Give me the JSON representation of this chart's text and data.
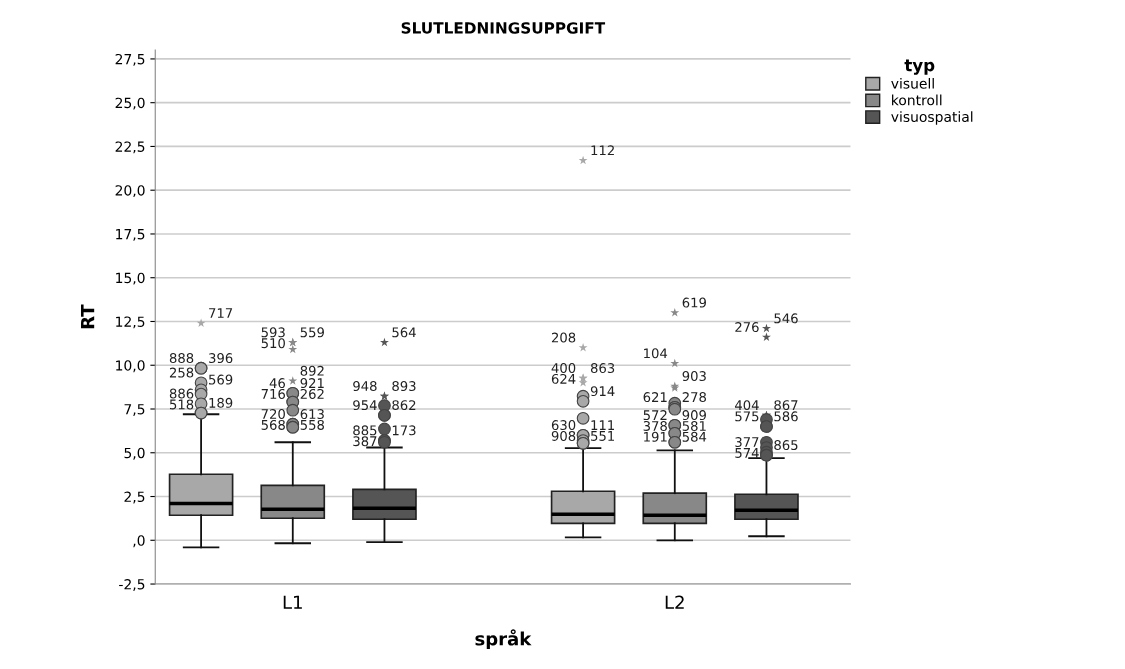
{
  "chart_data": {
    "type": "box",
    "title": "SLUTLEDNINGSUPPGIFT",
    "xlabel": "språk",
    "ylabel": "RT",
    "legend_title": "typ",
    "legend": "top right",
    "grid": "y",
    "categories": [
      "L1",
      "L2"
    ],
    "ylim": [
      -2.5,
      28
    ],
    "yticks": [
      {
        "value": -2.5,
        "label": "-2,5"
      },
      {
        "value": 0,
        "label": ",0"
      },
      {
        "value": 2.5,
        "label": "2,5"
      },
      {
        "value": 5,
        "label": "5,0"
      },
      {
        "value": 7.5,
        "label": "7,5"
      },
      {
        "value": 10,
        "label": "10,0"
      },
      {
        "value": 12.5,
        "label": "12,5"
      },
      {
        "value": 15,
        "label": "15,0"
      },
      {
        "value": 17.5,
        "label": "17,5"
      },
      {
        "value": 20,
        "label": "20,0"
      },
      {
        "value": 22.5,
        "label": "22,5"
      },
      {
        "value": 25,
        "label": "25,0"
      },
      {
        "value": 27.5,
        "label": "27,5"
      }
    ],
    "series": [
      {
        "name": "visuell",
        "color": "#a8a8a8",
        "boxes": [
          {
            "low": -0.4,
            "q1": 1.43,
            "median": 2.1,
            "q3": 3.77,
            "high": 7.2,
            "outliers": [
              12.4,
              9.83,
              9.83,
              9.0,
              8.6,
              8.35,
              7.8,
              7.27,
              7.27
            ]
          },
          {
            "low": 0.17,
            "q1": 0.97,
            "median": 1.49,
            "q3": 2.8,
            "high": 5.26,
            "outliers": [
              21.7,
              11.0,
              9.26,
              9.26,
              9.0,
              8.23,
              7.94,
              6.97,
              6.0,
              6.0,
              5.7,
              5.54,
              5.54
            ]
          }
        ],
        "value_labels": [
          [
            "717",
            "888",
            "396",
            "258",
            "569",
            null,
            "886",
            "518",
            "189"
          ],
          [
            "112",
            "208",
            "400",
            "863",
            "624",
            null,
            "914",
            null,
            "630",
            "111",
            null,
            "908",
            "551"
          ]
        ]
      },
      {
        "name": "kontroll",
        "color": "#888888",
        "boxes": [
          {
            "low": -0.17,
            "q1": 1.26,
            "median": 1.77,
            "q3": 3.14,
            "high": 5.6,
            "outliers": [
              11.3,
              11.3,
              10.9,
              9.1,
              8.4,
              8.4,
              7.9,
              7.9,
              7.43,
              6.63,
              6.63,
              6.46,
              6.46
            ]
          },
          {
            "low": 0.0,
            "q1": 0.97,
            "median": 1.43,
            "q3": 2.69,
            "high": 5.14,
            "outliers": [
              13.0,
              10.1,
              8.8,
              8.7,
              7.83,
              7.6,
              7.6,
              7.49,
              6.57,
              6.57,
              6.11,
              6.11,
              5.6,
              5.6
            ]
          }
        ],
        "value_labels": [
          [
            "593",
            "559",
            "510",
            "892",
            "46",
            "921",
            "716",
            "262",
            null,
            "720",
            "613",
            "568",
            "558"
          ],
          [
            "619",
            "104",
            "903",
            null,
            null,
            "621",
            "278",
            null,
            "572",
            "909",
            "378",
            "581",
            "191",
            "584"
          ]
        ]
      },
      {
        "name": "visuospatial",
        "color": "#555555",
        "boxes": [
          {
            "low": -0.1,
            "q1": 1.2,
            "median": 1.83,
            "q3": 2.91,
            "high": 5.3,
            "outliers": [
              11.3,
              8.23,
              8.23,
              7.7,
              7.14,
              7.14,
              6.36,
              5.7,
              5.7,
              5.6
            ]
          },
          {
            "low": 0.23,
            "q1": 1.2,
            "median": 1.71,
            "q3": 2.63,
            "high": 4.69,
            "outliers": [
              12.1,
              11.6,
              7.14,
              7.14,
              6.9,
              6.5,
              6.5,
              5.6,
              5.3,
              5.03,
              4.86,
              4.86
            ]
          }
        ],
        "value_labels": [
          [
            "564",
            "948",
            "893",
            null,
            "954",
            "862",
            null,
            "885",
            "173",
            "387"
          ],
          [
            "546",
            "276",
            "404",
            "867",
            null,
            "575",
            "586",
            null,
            null,
            "377",
            "574",
            "865"
          ]
        ]
      }
    ]
  }
}
